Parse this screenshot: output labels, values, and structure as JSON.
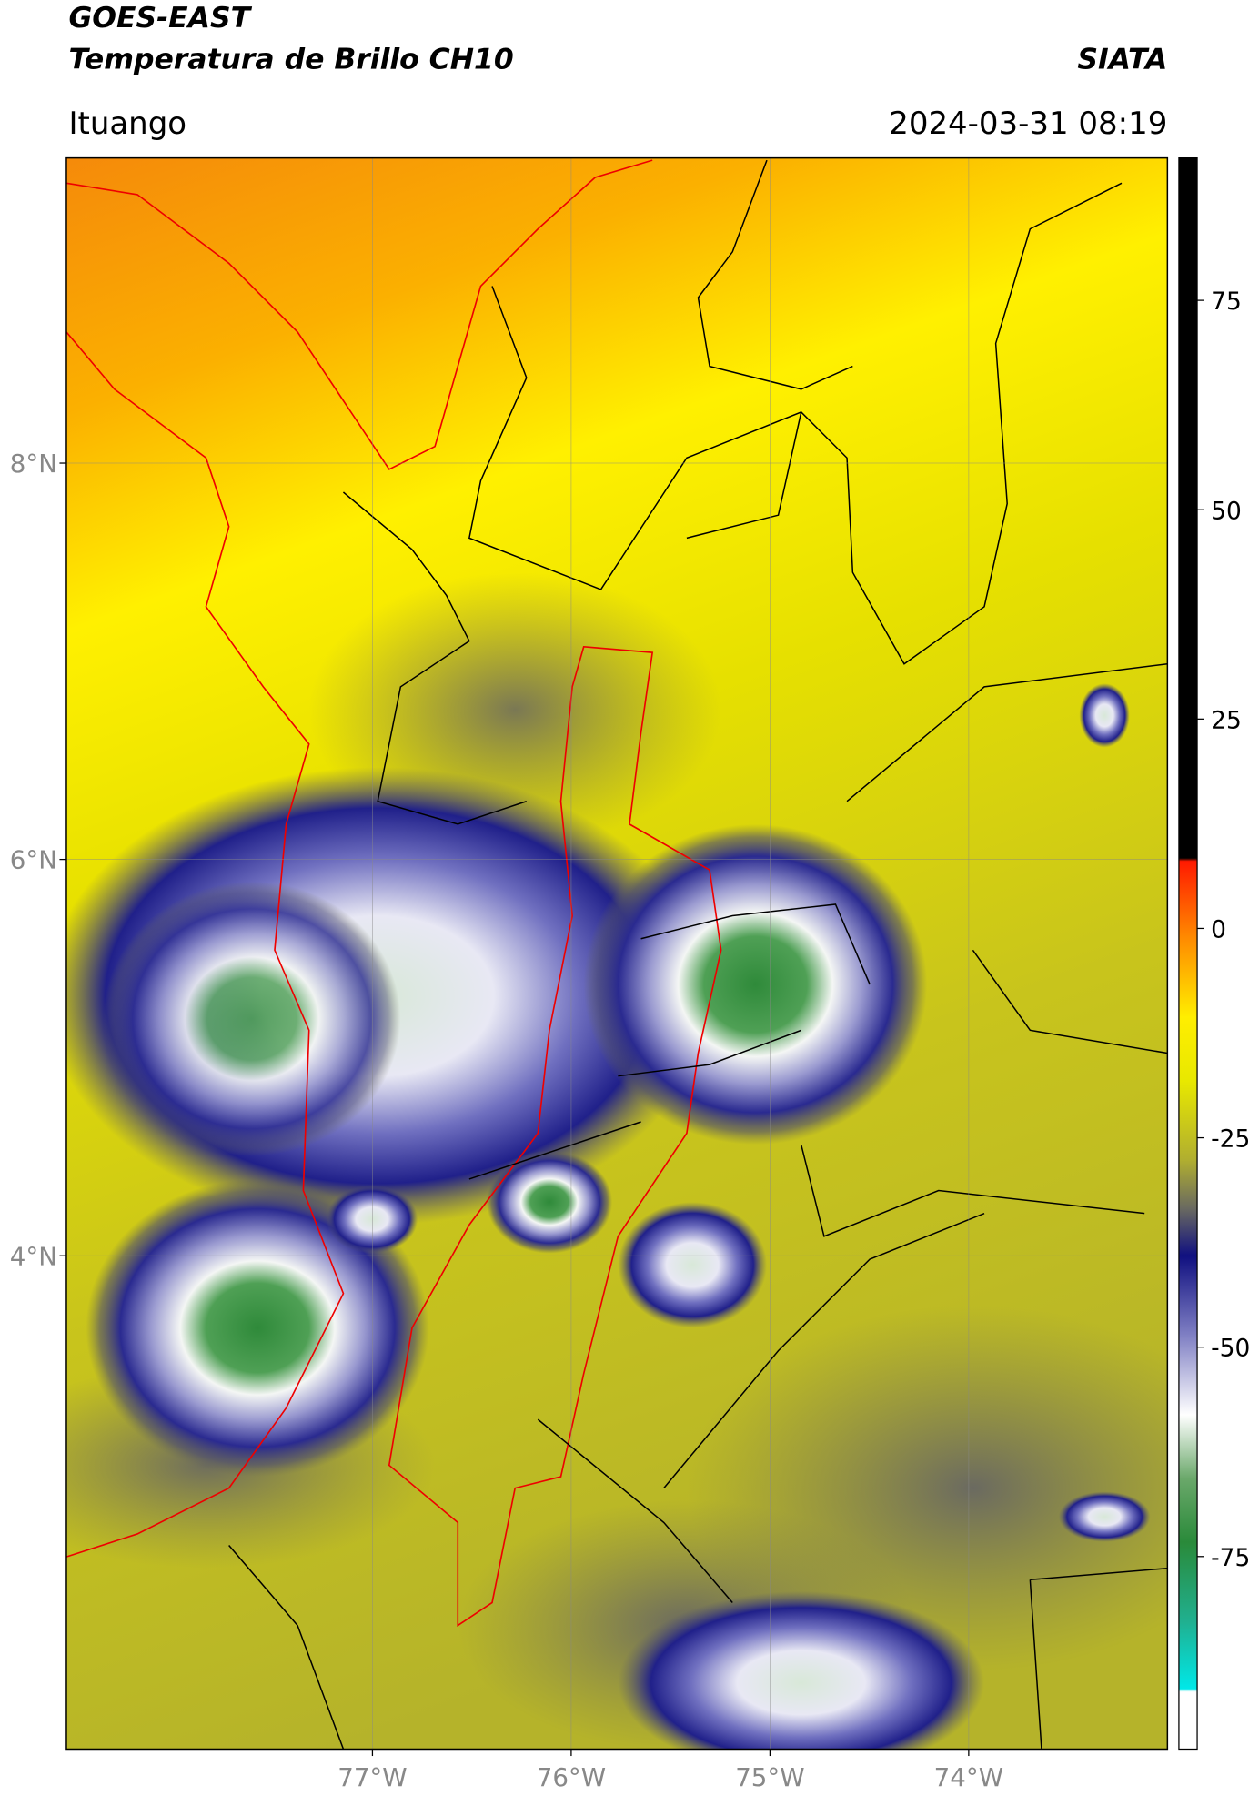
{
  "header": {
    "title": "GOES-EAST",
    "subtitle": "Temperatura de Brillo CH10",
    "source": "SIATA",
    "location": "Ituango",
    "datetime": "2024-03-31 08:19"
  },
  "map": {
    "lonlim": [
      -78.54,
      -73.0
    ],
    "latlim": [
      1.51,
      9.54
    ],
    "lon_ticks": [
      {
        "value": -77,
        "label": "77°W"
      },
      {
        "value": -76,
        "label": "76°W"
      },
      {
        "value": -75,
        "label": "75°W"
      },
      {
        "value": -74,
        "label": "74°W"
      }
    ],
    "lat_ticks": [
      {
        "value": 8,
        "label": "8°N"
      },
      {
        "value": 6,
        "label": "6°N"
      },
      {
        "value": 4,
        "label": "4°N"
      }
    ],
    "grid": true
  },
  "colorbar": {
    "lim": [
      -98,
      92
    ],
    "ticks": [
      75,
      50,
      25,
      0,
      -25,
      -50,
      -75
    ]
  }
}
